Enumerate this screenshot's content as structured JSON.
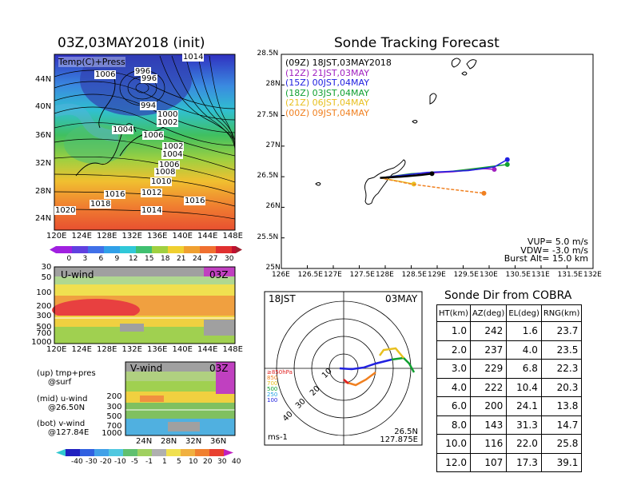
{
  "left": {
    "init_title": "03Z,03MAY2018 (init)",
    "temp_label": "Temp(C)+Press",
    "pressure_labels": [
      "1014",
      "1006",
      "996",
      "996",
      "994",
      "1000",
      "1002",
      "1004",
      "1006",
      "1002",
      "1004",
      "1006",
      "1008",
      "1010",
      "1012",
      "1016",
      "1018",
      "1014",
      "1016",
      "1020"
    ],
    "map_xticks": [
      "120E",
      "124E",
      "128E",
      "132E",
      "136E",
      "140E",
      "144E",
      "148E"
    ],
    "map_yticks": [
      "44N",
      "40N",
      "36N",
      "32N",
      "28N",
      "24N"
    ],
    "temp_cbar": [
      "0",
      "3",
      "6",
      "9",
      "12",
      "15",
      "18",
      "21",
      "24",
      "27",
      "30"
    ],
    "uwind_label": "U-wind",
    "uwind_time": "03Z",
    "uwind_yticks": [
      "30",
      "50",
      "100",
      "200",
      "300",
      "500",
      "700",
      "1000"
    ],
    "vwind_label": "V-wind",
    "vwind_time": "03Z",
    "vwind_yticks": [
      "200",
      "300",
      "500",
      "700",
      "1000"
    ],
    "vwind_xticks": [
      "24N",
      "28N",
      "32N",
      "36N"
    ],
    "notes": [
      "(up) tmp+pres",
      "@surf",
      "(mid) u-wind",
      "@26.50N",
      "(bot) v-wind",
      "@127.84E"
    ],
    "wind_cbar": [
      "-40",
      "-30",
      "-20",
      "-10",
      "-5",
      "-1",
      "1",
      "5",
      "10",
      "20",
      "30",
      "40"
    ]
  },
  "track": {
    "title": "Sonde Tracking Forecast",
    "yticks": [
      "28.5N",
      "28N",
      "27.5N",
      "27N",
      "26.5N",
      "26N",
      "25.5N",
      "25N"
    ],
    "xticks": [
      "126E",
      "126.5E",
      "127E",
      "127.5E",
      "128E",
      "128.5E",
      "129E",
      "129.5E",
      "130E",
      "130.5E",
      "131E",
      "131.5E",
      "132E"
    ],
    "legend": [
      {
        "label": "(09Z)  18JST,03MAY2018",
        "color": "#000000"
      },
      {
        "label": "(12Z)  21JST,03MAY",
        "color": "#a020c0"
      },
      {
        "label": "(15Z)  00JST,04MAY",
        "color": "#2020e0"
      },
      {
        "label": "(18Z)  03JST,04MAY",
        "color": "#10a030"
      },
      {
        "label": "(21Z)  06JST,04MAY",
        "color": "#e8c020"
      },
      {
        "label": "(00Z)  09JST,04MAY",
        "color": "#f08020"
      }
    ],
    "params": [
      "VUP=  5.0  m/s",
      "VDW= -3.0  m/s",
      "Burst Alt=  15.0  km"
    ]
  },
  "polar": {
    "time_left": "18JST",
    "time_right": "03MAY",
    "ring_labels": [
      "10",
      "20",
      "30",
      "40"
    ],
    "level_labels": [
      "≥850hPa",
      "850",
      "700",
      "500",
      "250",
      "100"
    ],
    "level_colors": [
      "#e02020",
      "#f08020",
      "#e8c020",
      "#10a030",
      "#20a0e0",
      "#2020e0"
    ],
    "unit": "ms-1",
    "lat": "26.5N",
    "lon": "127.875E"
  },
  "table": {
    "title": "Sonde Dir from COBRA",
    "headers": [
      "HT(km)",
      "AZ(deg)",
      "EL(deg)",
      "RNG(km)"
    ],
    "rows": [
      [
        "1.0",
        "242",
        "1.6",
        "23.7"
      ],
      [
        "2.0",
        "237",
        "4.0",
        "23.5"
      ],
      [
        "3.0",
        "229",
        "6.8",
        "22.3"
      ],
      [
        "4.0",
        "222",
        "10.4",
        "20.3"
      ],
      [
        "6.0",
        "200",
        "24.1",
        "13.8"
      ],
      [
        "8.0",
        "143",
        "31.3",
        "14.7"
      ],
      [
        "10.0",
        "116",
        "22.0",
        "25.8"
      ],
      [
        "12.0",
        "107",
        "17.3",
        "39.1"
      ]
    ]
  },
  "chart_data": [
    {
      "type": "line",
      "title": "Sonde Tracking Forecast",
      "xlim": [
        126,
        132
      ],
      "ylim": [
        25,
        28.5
      ],
      "series": [
        {
          "name": "(09Z) 18JST,03MAY2018",
          "x": [
            127.9,
            128.3,
            128.7,
            128.9
          ],
          "y": [
            26.48,
            26.5,
            26.53,
            26.55
          ]
        },
        {
          "name": "(12Z) 21JST,03MAY",
          "x": [
            127.9,
            128.6,
            129.3,
            129.9,
            130.1
          ],
          "y": [
            26.48,
            26.55,
            26.58,
            26.63,
            26.62
          ]
        },
        {
          "name": "(15Z) 00JST,04MAY",
          "x": [
            127.9,
            128.8,
            129.6,
            130.1,
            130.35
          ],
          "y": [
            26.48,
            26.57,
            26.6,
            26.66,
            26.78
          ]
        },
        {
          "name": "(18Z) 03JST,04MAY",
          "x": [
            127.9,
            128.5,
            129.2,
            129.8,
            130.35
          ],
          "y": [
            26.48,
            26.55,
            26.58,
            26.64,
            26.7
          ]
        },
        {
          "name": "(21Z) 06JST,04MAY",
          "x": [
            127.9,
            128.3,
            128.55
          ],
          "y": [
            26.48,
            26.42,
            26.38
          ]
        },
        {
          "name": "(00Z) 09JST,04MAY",
          "x": [
            127.9,
            128.5,
            129.2,
            129.9
          ],
          "y": [
            26.48,
            26.38,
            26.3,
            26.23
          ]
        }
      ]
    },
    {
      "type": "table",
      "title": "Sonde Dir from COBRA",
      "columns": [
        "HT(km)",
        "AZ(deg)",
        "EL(deg)",
        "RNG(km)"
      ],
      "rows": [
        [
          1.0,
          242,
          1.6,
          23.7
        ],
        [
          2.0,
          237,
          4.0,
          23.5
        ],
        [
          3.0,
          229,
          6.8,
          22.3
        ],
        [
          4.0,
          222,
          10.4,
          20.3
        ],
        [
          6.0,
          200,
          24.1,
          13.8
        ],
        [
          8.0,
          143,
          31.3,
          14.7
        ],
        [
          10.0,
          116,
          22.0,
          25.8
        ],
        [
          12.0,
          107,
          17.3,
          39.1
        ]
      ]
    }
  ]
}
